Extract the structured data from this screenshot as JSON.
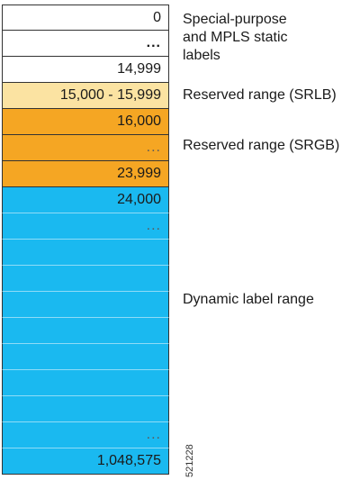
{
  "rows": [
    {
      "text": "0",
      "color": "white",
      "cls": ""
    },
    {
      "text": "...",
      "color": "white",
      "cls": "ellipsis-dark"
    },
    {
      "text": "14,999",
      "color": "white",
      "cls": ""
    },
    {
      "text": "15,000 - 15,999",
      "color": "yellow",
      "cls": ""
    },
    {
      "text": "16,000",
      "color": "orange",
      "cls": ""
    },
    {
      "text": "...",
      "color": "orange",
      "cls": "ellipsis-light"
    },
    {
      "text": "23,999",
      "color": "orange",
      "cls": ""
    },
    {
      "text": "24,000",
      "color": "blue",
      "cls": ""
    },
    {
      "text": "...",
      "color": "blue",
      "cls": "ellipsis-light"
    },
    {
      "text": "",
      "color": "blue",
      "cls": ""
    },
    {
      "text": "",
      "color": "blue",
      "cls": ""
    },
    {
      "text": "",
      "color": "blue",
      "cls": ""
    },
    {
      "text": "",
      "color": "blue",
      "cls": ""
    },
    {
      "text": "",
      "color": "blue",
      "cls": ""
    },
    {
      "text": "",
      "color": "blue",
      "cls": ""
    },
    {
      "text": "",
      "color": "blue",
      "cls": ""
    },
    {
      "text": "...",
      "color": "blue",
      "cls": "ellipsis-light"
    },
    {
      "text": "1,048,575",
      "color": "blue",
      "cls": ""
    }
  ],
  "labels": {
    "special": "Special-purpose\nand MPLS static\nlabels",
    "srlb": "Reserved range (SRLB)",
    "srgb": "Reserved range (SRGB)",
    "dynamic": "Dynamic label range"
  },
  "figure_id": "521228",
  "colors": {
    "white": "#ffffff",
    "yellow": "#fbe3a2",
    "orange": "#f5a623",
    "blue": "#1ab9f0"
  }
}
